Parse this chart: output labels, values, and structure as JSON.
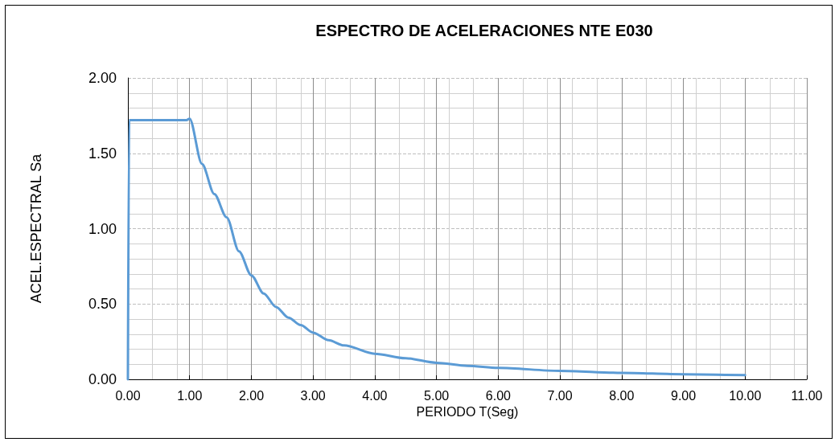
{
  "chart_data": {
    "type": "line",
    "title": "ESPECTRO DE ACELERACIONES NTE E030",
    "xlabel": "PERIODO T(Seg)",
    "ylabel": "ACEL.ESPECTRAL Sa",
    "series": [
      {
        "color": "#5b9bd5",
        "x": [
          0,
          0.02,
          0.5,
          0.9,
          0.95,
          1.0,
          1.2,
          1.4,
          1.6,
          1.8,
          2.0,
          2.2,
          2.4,
          2.6,
          2.8,
          3.0,
          3.25,
          3.5,
          4.0,
          4.5,
          5.0,
          5.5,
          6.0,
          7.0,
          8.0,
          9.0,
          10.0
        ],
        "values": [
          0,
          1.72,
          1.72,
          1.72,
          1.72,
          1.73,
          1.43,
          1.23,
          1.075,
          0.85,
          0.69,
          0.57,
          0.48,
          0.41,
          0.36,
          0.31,
          0.26,
          0.225,
          0.17,
          0.14,
          0.11,
          0.09,
          0.076,
          0.056,
          0.043,
          0.034,
          0.028
        ]
      }
    ],
    "xlim": [
      0,
      11
    ],
    "xticks": [
      {
        "value": 0,
        "label": "0.00"
      },
      {
        "value": 1,
        "label": "1.00"
      },
      {
        "value": 2,
        "label": "2.00"
      },
      {
        "value": 3,
        "label": "3.00"
      },
      {
        "value": 4,
        "label": "4.00"
      },
      {
        "value": 5,
        "label": "5.00"
      },
      {
        "value": 6,
        "label": "6.00"
      },
      {
        "value": 7,
        "label": "7.00"
      },
      {
        "value": 8,
        "label": "8.00"
      },
      {
        "value": 9,
        "label": "9.00"
      },
      {
        "value": 10,
        "label": "10.00"
      },
      {
        "value": 11,
        "label": "11.00"
      }
    ],
    "ylim": [
      0,
      2
    ],
    "yticks": [
      {
        "value": 0,
        "label": "0.00"
      },
      {
        "value": 0.5,
        "label": "0.50"
      },
      {
        "value": 1,
        "label": "1.00"
      },
      {
        "value": 1.5,
        "label": "1.50"
      },
      {
        "value": 2,
        "label": "2.00"
      }
    ],
    "grid": true,
    "marker": "none",
    "line_style": "solid"
  }
}
